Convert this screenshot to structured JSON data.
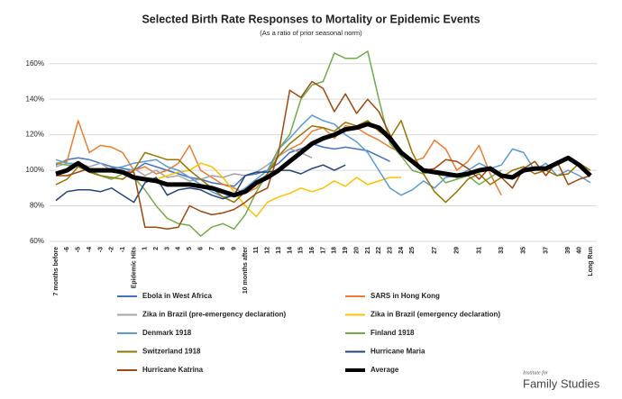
{
  "chart_data": {
    "type": "line",
    "title": "Selected Birth Rate Responses to Mortality or Epidemic Events",
    "subtitle": "(As a ratio of prior seasonal norm)",
    "categories": [
      "7 months before",
      "-6",
      "-5",
      "-4",
      "-3",
      "-2",
      "-1",
      "Epidemic Hits",
      "1",
      "2",
      "3",
      "4",
      "5",
      "6",
      "7",
      "8",
      "9",
      "10 months after",
      "11",
      "12",
      "13",
      "14",
      "15",
      "16",
      "17",
      "18",
      "19",
      "20",
      "21",
      "22",
      "23",
      "24",
      "25",
      null,
      "27",
      null,
      "29",
      null,
      "31",
      null,
      "33",
      null,
      "35",
      null,
      "37",
      null,
      "39",
      "40",
      "Long Run"
    ],
    "ylim": [
      60,
      170
    ],
    "yticks": [
      {
        "value": 60,
        "label": "60%"
      },
      {
        "value": 80,
        "label": "80%"
      },
      {
        "value": 100,
        "label": "100%"
      },
      {
        "value": 120,
        "label": "120%"
      },
      {
        "value": 140,
        "label": "140%"
      },
      {
        "value": 160,
        "label": "160%"
      }
    ],
    "grid": true,
    "legend": "bottom",
    "series": [
      {
        "name": "Ebola in West Africa",
        "color": "#4472c4",
        "values": [
          103,
          106,
          107,
          106,
          104,
          102,
          101,
          100,
          104,
          102,
          100,
          98,
          96,
          95,
          93,
          92,
          91,
          97,
          98,
          100,
          104,
          110,
          112,
          115,
          113,
          112,
          113,
          112,
          111,
          108,
          105,
          null,
          null,
          null,
          null,
          null,
          null,
          null,
          null,
          null,
          null,
          null,
          null,
          null,
          null,
          null,
          null,
          null,
          null
        ]
      },
      {
        "name": "SARS in Hong Kong",
        "color": "#ed7d31",
        "values": [
          104,
          105,
          128,
          110,
          114,
          113,
          110,
          100,
          102,
          98,
          100,
          104,
          114,
          100,
          96,
          92,
          90,
          87,
          90,
          98,
          108,
          112,
          115,
          122,
          124,
          118,
          125,
          124,
          120,
          117,
          113,
          110,
          105,
          107,
          117,
          112,
          100,
          105,
          114,
          98,
          86,
          null,
          null,
          null,
          null,
          null,
          null,
          null,
          null
        ]
      },
      {
        "name": "Zika in Brazil  (pre-emergency declaration)",
        "color": "#a5a5a5",
        "values": [
          102,
          104,
          104,
          102,
          104,
          100,
          98,
          101,
          97,
          100,
          96,
          97,
          94,
          95,
          97,
          96,
          98,
          97,
          99,
          103,
          108,
          112,
          110,
          107,
          null,
          null,
          null,
          null,
          null,
          null,
          null,
          null,
          null,
          null,
          null,
          null,
          null,
          null,
          null,
          null,
          null,
          null,
          null,
          null,
          null,
          null,
          null,
          null,
          null
        ]
      },
      {
        "name": "Zika in Brazil (emergency declaration)",
        "color": "#ffc000",
        "values": [
          null,
          null,
          null,
          null,
          null,
          null,
          null,
          null,
          null,
          95,
          97,
          99,
          100,
          104,
          102,
          96,
          88,
          80,
          74,
          82,
          85,
          87,
          90,
          88,
          90,
          94,
          91,
          96,
          92,
          94,
          96,
          96,
          null,
          null,
          null,
          null,
          null,
          null,
          null,
          null,
          null,
          null,
          null,
          null,
          null,
          null,
          null,
          null,
          null
        ]
      },
      {
        "name": "Denmark 1918",
        "color": "#5b9bd5",
        "values": [
          106,
          104,
          103,
          100,
          100,
          101,
          102,
          104,
          105,
          106,
          102,
          100,
          96,
          92,
          88,
          85,
          86,
          90,
          95,
          100,
          112,
          118,
          125,
          131,
          128,
          126,
          120,
          116,
          110,
          100,
          90,
          86,
          89,
          94,
          90,
          96,
          97,
          100,
          104,
          101,
          103,
          112,
          110,
          100,
          104,
          97,
          100,
          97,
          93
        ]
      },
      {
        "name": "Finland 1918",
        "color": "#70ad47",
        "values": [
          104,
          103,
          102,
          100,
          97,
          95,
          98,
          96,
          89,
          80,
          73,
          70,
          69,
          63,
          68,
          70,
          67,
          75,
          88,
          98,
          112,
          120,
          140,
          148,
          150,
          166,
          163,
          163,
          167,
          140,
          115,
          108,
          100,
          98,
          100,
          93,
          95,
          97,
          92,
          96,
          100,
          null,
          null,
          null,
          null,
          null,
          null,
          null,
          null
        ]
      },
      {
        "name": "Switzerland 1918",
        "color": "#997300",
        "values": [
          92,
          95,
          102,
          99,
          97,
          96,
          95,
          100,
          110,
          108,
          106,
          106,
          100,
          95,
          90,
          85,
          82,
          88,
          92,
          98,
          108,
          115,
          120,
          125,
          124,
          122,
          127,
          125,
          128,
          122,
          118,
          128,
          110,
          98,
          88,
          82,
          88,
          95,
          98,
          92,
          96,
          100,
          102,
          98,
          100,
          97,
          98,
          104,
          100
        ]
      },
      {
        "name": "Hurricane Maria",
        "color": "#264478",
        "values": [
          83,
          88,
          89,
          89,
          88,
          90,
          86,
          82,
          93,
          96,
          86,
          89,
          90,
          89,
          86,
          84,
          86,
          97,
          99,
          99,
          100,
          100,
          98,
          101,
          103,
          100,
          103,
          null,
          null,
          null,
          null,
          null,
          null,
          null,
          null,
          null,
          null,
          null,
          null,
          null,
          null,
          null,
          null,
          null,
          null,
          null,
          null,
          null,
          null
        ]
      },
      {
        "name": "Hurricane Katrina",
        "color": "#9e480e",
        "values": [
          97,
          97,
          99,
          101,
          100,
          100,
          99,
          99,
          68,
          68,
          67,
          68,
          80,
          77,
          75,
          76,
          78,
          82,
          87,
          90,
          110,
          145,
          141,
          150,
          146,
          133,
          143,
          132,
          140,
          133,
          120,
          110,
          105,
          100,
          101,
          106,
          105,
          101,
          95,
          102,
          96,
          90,
          101,
          105,
          97,
          105,
          92,
          95,
          97
        ]
      },
      {
        "name": "Average",
        "color": "#000000",
        "values": [
          98,
          100,
          104,
          100,
          100,
          100,
          99,
          96,
          95,
          94,
          92,
          92,
          92,
          91,
          90,
          88,
          86,
          88,
          93,
          96,
          100,
          105,
          110,
          115,
          118,
          120,
          123,
          124,
          126,
          124,
          118,
          110,
          105,
          100,
          99,
          98,
          97,
          98,
          100,
          101,
          97,
          96,
          100,
          101,
          101,
          104,
          107,
          103,
          97
        ]
      }
    ]
  },
  "branding": {
    "line1": "Institute for",
    "line2": "Family Studies"
  }
}
